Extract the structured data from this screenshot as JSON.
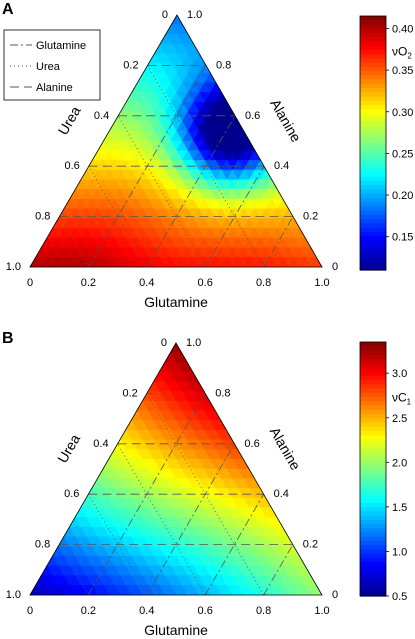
{
  "chart_data": [
    {
      "panel_label": "A",
      "type": "heatmap",
      "axes": {
        "bottom": {
          "label": "Glutamine",
          "ticks": [
            "0",
            "0.2",
            "0.4",
            "0.6",
            "0.8",
            "1.0"
          ]
        },
        "left": {
          "label": "Urea",
          "ticks": [
            "0",
            "0.2",
            "0.4",
            "0.6",
            "0.8",
            "1.0"
          ]
        },
        "right": {
          "label": "Alanine",
          "ticks": [
            "0",
            "0.2",
            "0.4",
            "0.6",
            "0.8",
            "1.0"
          ]
        }
      },
      "legend": {
        "placement": "top-left",
        "entries": [
          {
            "label": "Glutamine",
            "dash": "8,3,2,3"
          },
          {
            "label": "Urea",
            "dash": "1,3"
          },
          {
            "label": "Alanine",
            "dash": "9,5"
          }
        ]
      },
      "colorbar": {
        "label_main": "νO",
        "label_sub": "2",
        "range": [
          0.11,
          0.415
        ],
        "ticks": [
          "0.15",
          "0.20",
          "0.25",
          "0.30",
          "0.35",
          "0.40"
        ],
        "tick_values": [
          0.15,
          0.2,
          0.25,
          0.3,
          0.35,
          0.4
        ]
      },
      "corners": {
        "glutamine": 0.36,
        "urea": 0.4,
        "alanine": 0.18
      },
      "field": "valley",
      "gridlines": true
    },
    {
      "panel_label": "B",
      "type": "heatmap",
      "axes": {
        "bottom": {
          "label": "Glutamine",
          "ticks": [
            "0",
            "0.2",
            "0.4",
            "0.6",
            "0.8",
            "1.0"
          ]
        },
        "left": {
          "label": "Urea",
          "ticks": [
            "0",
            "0.2",
            "0.4",
            "0.6",
            "0.8",
            "1.0"
          ]
        },
        "right": {
          "label": "Alanine",
          "ticks": [
            "0",
            "0.2",
            "0.4",
            "0.6",
            "0.8",
            "1.0"
          ]
        }
      },
      "colorbar": {
        "label_main": "νC",
        "label_sub": "1",
        "range": [
          0.5,
          3.35
        ],
        "ticks": [
          "0.5",
          "1.0",
          "1.5",
          "2.0",
          "2.5",
          "3.0"
        ],
        "tick_values": [
          0.5,
          1.0,
          1.5,
          2.0,
          2.5,
          3.0
        ]
      },
      "corners": {
        "glutamine": 2.0,
        "urea": 0.6,
        "alanine": 3.3
      },
      "field": "linear",
      "gridlines": true
    }
  ],
  "colors": {
    "jet": [
      "#00008f",
      "#0000ff",
      "#00ffff",
      "#ffff00",
      "#ff0000",
      "#800000"
    ],
    "gridline": "#555555",
    "frame": "#000000"
  }
}
